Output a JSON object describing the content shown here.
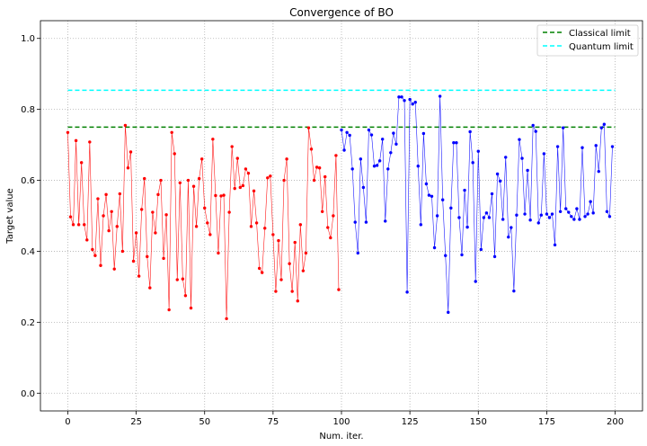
{
  "chart_data": {
    "type": "line",
    "title": "Convergence of BO",
    "xlabel": "Num. iter.",
    "ylabel": "Target value",
    "xlim": [
      -10,
      210
    ],
    "ylim": [
      -0.05,
      1.05
    ],
    "xticks": [
      0,
      25,
      50,
      75,
      100,
      125,
      150,
      175,
      200
    ],
    "xtick_labels": [
      "0",
      "25",
      "50",
      "75",
      "100",
      "125",
      "150",
      "175",
      "200"
    ],
    "yticks": [
      0.0,
      0.2,
      0.4,
      0.6,
      0.8,
      1.0
    ],
    "ytick_labels": [
      "0.0",
      "0.2",
      "0.4",
      "0.6",
      "0.8",
      "1.0"
    ],
    "grid": true,
    "legend_position": "top-right",
    "hlines": [
      {
        "name": "Classical limit",
        "y": 0.75,
        "color": "#008000",
        "style": "dashed"
      },
      {
        "name": "Quantum limit",
        "y": 0.854,
        "color": "#00ffff",
        "style": "dashed"
      }
    ],
    "series": [
      {
        "color": "#ff0000",
        "x_start": 0,
        "values": [
          0.735,
          0.497,
          0.475,
          0.712,
          0.475,
          0.65,
          0.475,
          0.432,
          0.708,
          0.405,
          0.388,
          0.548,
          0.36,
          0.5,
          0.56,
          0.458,
          0.512,
          0.35,
          0.47,
          0.562,
          0.4,
          0.755,
          0.635,
          0.68,
          0.372,
          0.452,
          0.33,
          0.518,
          0.605,
          0.385,
          0.297,
          0.51,
          0.452,
          0.56,
          0.6,
          0.38,
          0.503,
          0.235,
          0.735,
          0.675,
          0.32,
          0.593,
          0.322,
          0.275,
          0.6,
          0.24,
          0.583,
          0.47,
          0.605,
          0.66,
          0.522,
          0.48,
          0.447,
          0.716,
          0.557,
          0.395,
          0.556,
          0.558,
          0.21,
          0.51,
          0.695,
          0.577,
          0.662,
          0.58,
          0.585,
          0.632,
          0.62,
          0.47,
          0.57,
          0.48,
          0.352,
          0.34,
          0.465,
          0.607,
          0.612,
          0.447,
          0.287,
          0.43,
          0.32,
          0.6,
          0.66,
          0.365,
          0.287,
          0.425,
          0.26,
          0.475,
          0.345,
          0.395,
          0.748,
          0.688,
          0.6,
          0.637,
          0.635,
          0.512,
          0.61,
          0.467,
          0.438,
          0.5,
          0.67,
          0.292
        ]
      },
      {
        "color": "#0000ff",
        "x_start": 100,
        "values": [
          0.742,
          0.685,
          0.735,
          0.727,
          0.632,
          0.482,
          0.395,
          0.66,
          0.58,
          0.482,
          0.742,
          0.728,
          0.64,
          0.642,
          0.655,
          0.716,
          0.485,
          0.632,
          0.678,
          0.733,
          0.702,
          0.835,
          0.835,
          0.825,
          0.285,
          0.828,
          0.815,
          0.82,
          0.64,
          0.475,
          0.732,
          0.59,
          0.558,
          0.555,
          0.41,
          0.5,
          0.837,
          0.545,
          0.388,
          0.228,
          0.522,
          0.706,
          0.706,
          0.495,
          0.39,
          0.572,
          0.468,
          0.737,
          0.65,
          0.315,
          0.682,
          0.405,
          0.495,
          0.508,
          0.495,
          0.562,
          0.385,
          0.618,
          0.598,
          0.49,
          0.665,
          0.44,
          0.467,
          0.288,
          0.502,
          0.715,
          0.662,
          0.505,
          0.628,
          0.488,
          0.755,
          0.738,
          0.48,
          0.502,
          0.675,
          0.505,
          0.495,
          0.505,
          0.418,
          0.695,
          0.512,
          0.748,
          0.52,
          0.51,
          0.498,
          0.49,
          0.52,
          0.49,
          0.692,
          0.498,
          0.505,
          0.54,
          0.508,
          0.698,
          0.625,
          0.748,
          0.758,
          0.512,
          0.498,
          0.695
        ]
      }
    ]
  }
}
